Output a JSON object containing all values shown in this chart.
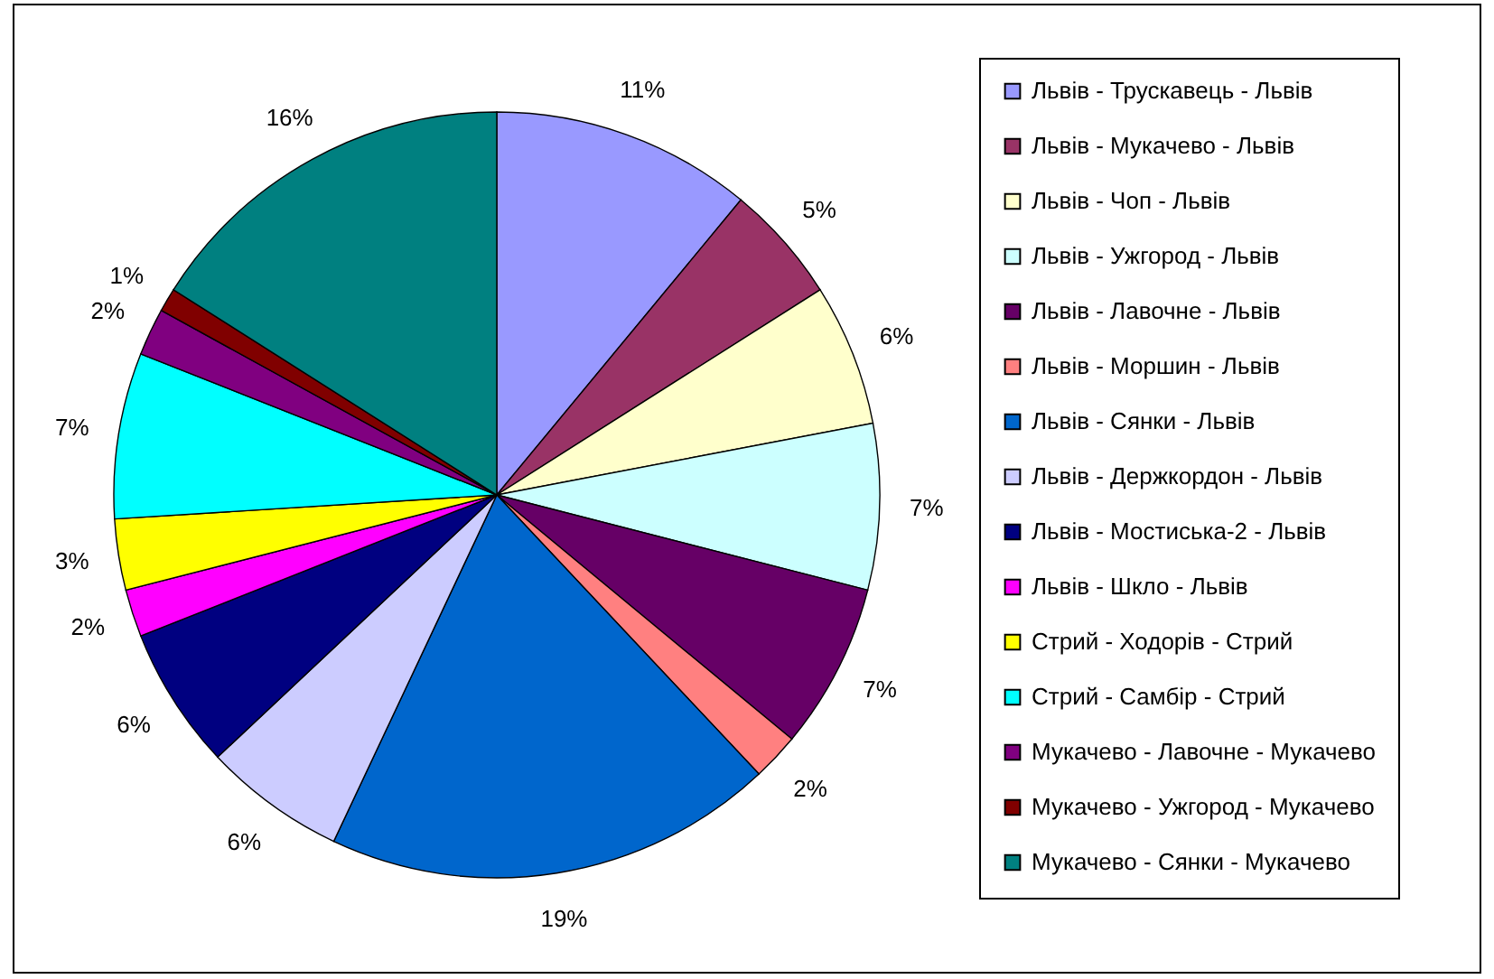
{
  "chart_data": {
    "type": "pie",
    "categories": [
      "Львів - Трускавець - Львів",
      "Львів - Мукачево - Львів",
      "Львів - Чоп - Львів",
      "Львів - Ужгород - Львів",
      "Львів - Лавочне - Львів",
      "Львів - Моршин - Львів",
      "Львів - Сянки - Львів",
      "Львів - Держкордон - Львів",
      "Львів - Мостиська-2 - Львів",
      "Львів - Шкло - Львів",
      "Стрий - Ходорів - Стрий",
      "Стрий - Самбір - Стрий",
      "Мукачево - Лавочне - Мукачево",
      "Мукачево - Ужгород - Мукачево",
      "Мукачево - Сянки - Мукачево"
    ],
    "values": [
      11,
      5,
      6,
      7,
      7,
      2,
      19,
      6,
      6,
      2,
      3,
      7,
      2,
      1,
      16
    ],
    "value_labels": [
      "11%",
      "5%",
      "6%",
      "7%",
      "7%",
      "2%",
      "19%",
      "6%",
      "6%",
      "2%",
      "3%",
      "7%",
      "2%",
      "1%",
      "16%"
    ],
    "colors": [
      "#9999ff",
      "#993366",
      "#ffffcc",
      "#ccffff",
      "#660066",
      "#ff8080",
      "#0066cc",
      "#ccccff",
      "#000080",
      "#ff00ff",
      "#ffff00",
      "#00ffff",
      "#800080",
      "#800000",
      "#008080"
    ],
    "legend": "right"
  }
}
